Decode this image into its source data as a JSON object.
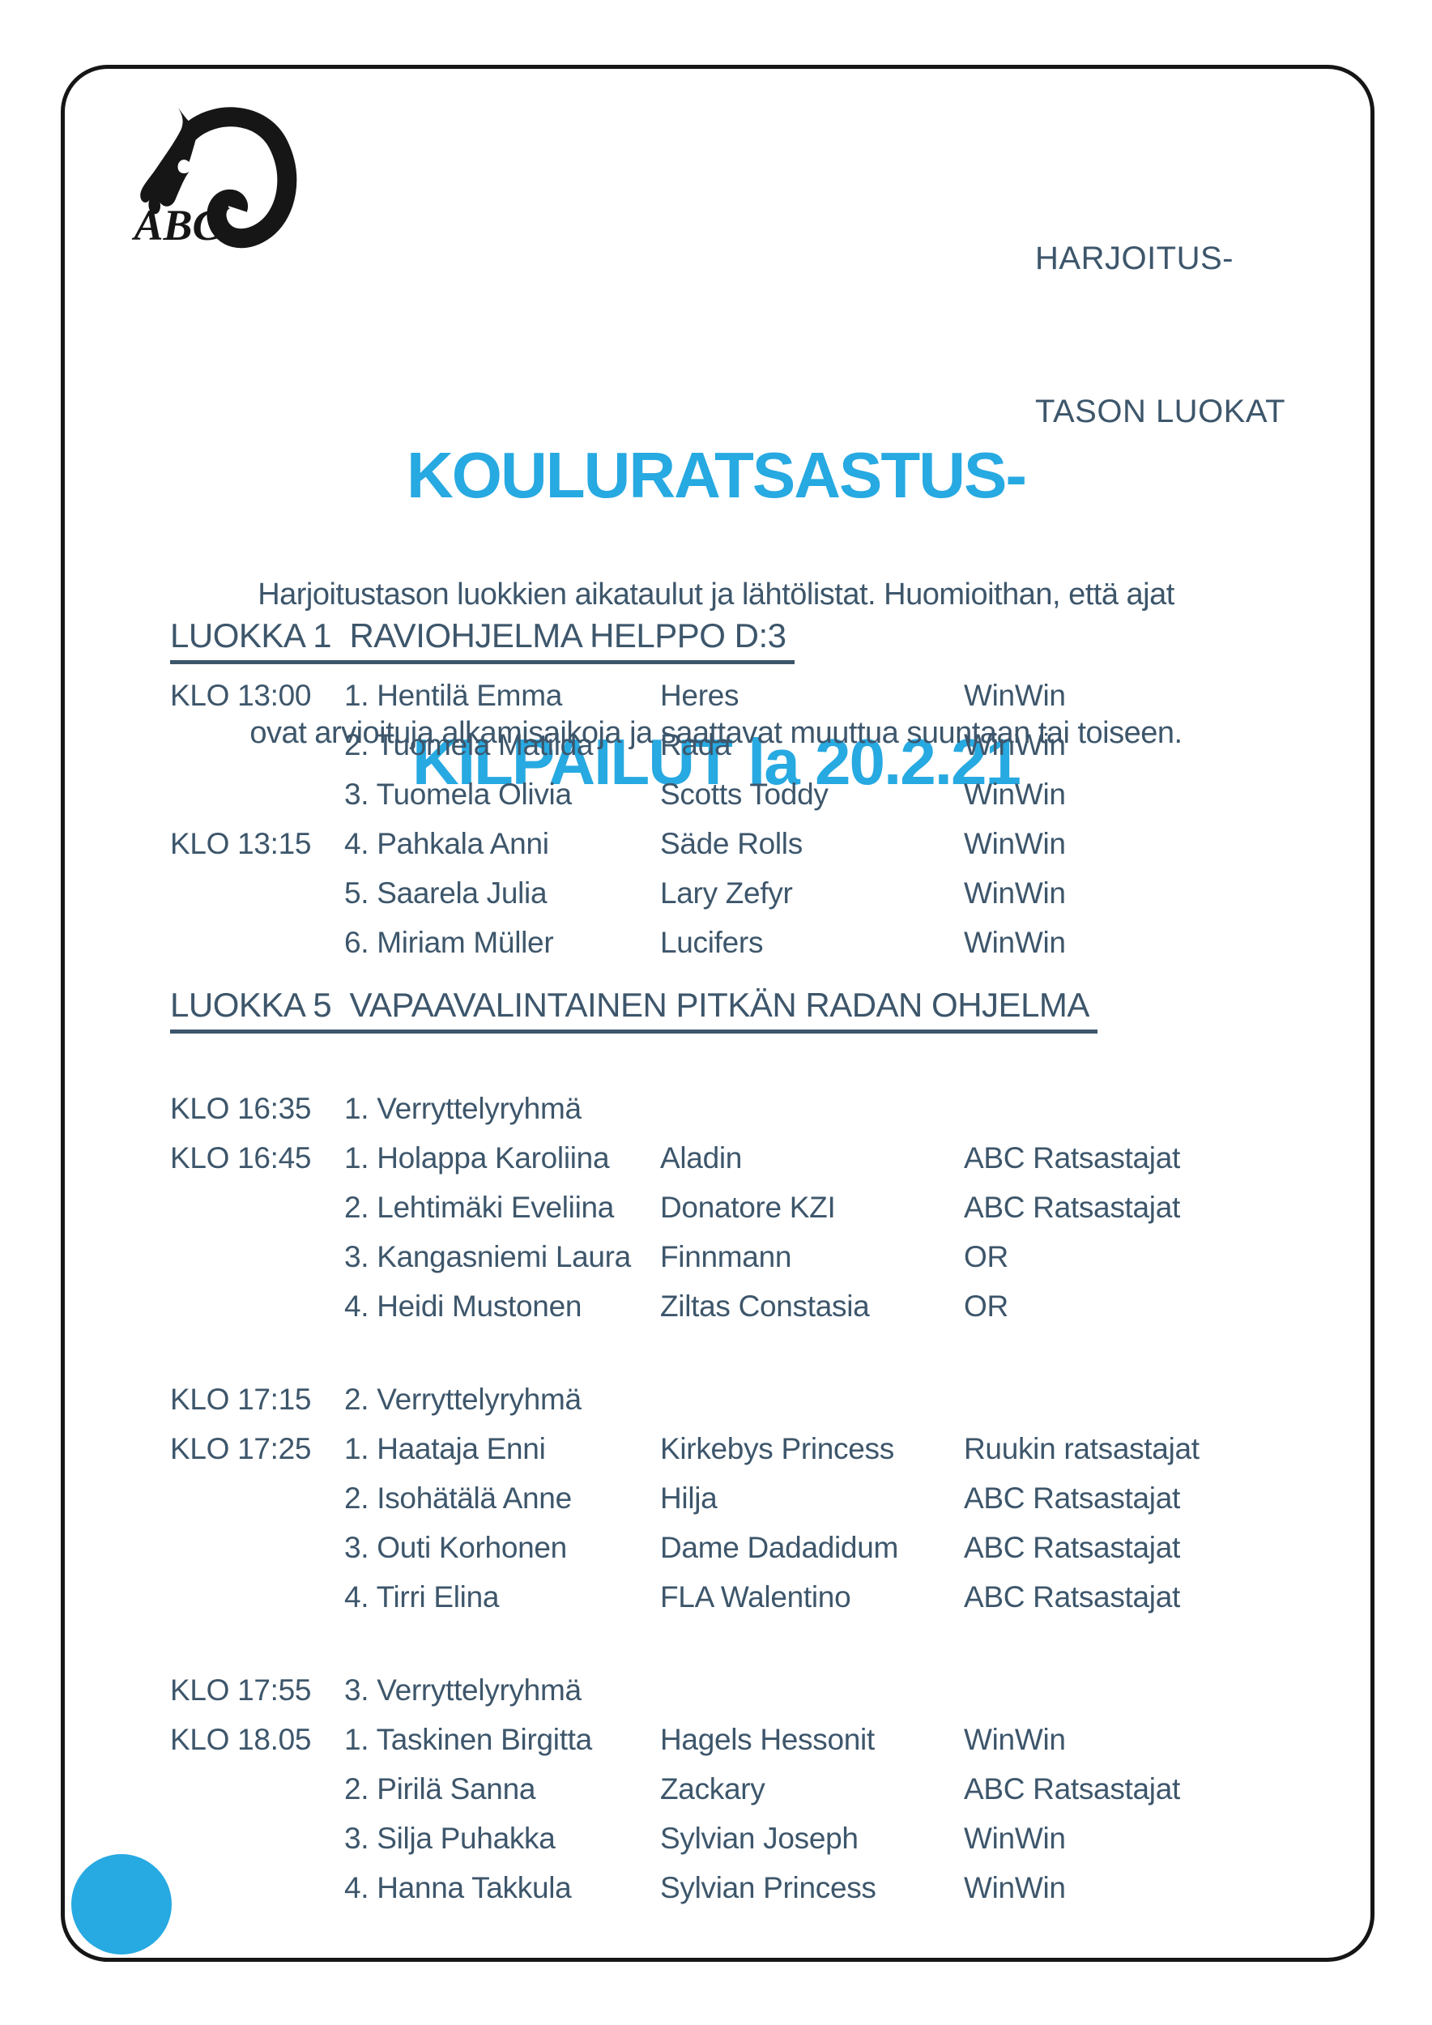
{
  "colors": {
    "accent": "#27a9e1",
    "text": "#3d566b",
    "frame": "#161616"
  },
  "logo": {
    "text": "ABC"
  },
  "corner_label": {
    "line1": "HARJOITUS-",
    "line2": "TASON LUOKAT"
  },
  "title": {
    "line1": "KOULURATSASTUS-",
    "line2": "KILPAILUT la 20.2.21"
  },
  "intro": {
    "line1": "Harjoitustason luokkien aikataulut ja lähtölistat. Huomioithan, että ajat",
    "line2": "ovat arvioituja alkamisaikoja ja saattavat muuttua suuntaan tai toiseen."
  },
  "sections": [
    {
      "heading": "LUOKKA 1  RAVIOHJELMA HELPPO D:3",
      "rows": [
        {
          "time": "KLO 13:00",
          "entry": "1. Hentilä Emma",
          "horse": "Heres",
          "club": "WinWin"
        },
        {
          "time": "",
          "entry": "2. Tuomela Matilda",
          "horse": "Rada",
          "club": "WinWin"
        },
        {
          "time": "",
          "entry": "3. Tuomela Olivia",
          "horse": "Scotts Toddy",
          "club": "WinWin"
        },
        {
          "time": "KLO 13:15",
          "entry": "4. Pahkala Anni",
          "horse": "Säde Rolls",
          "club": "WinWin"
        },
        {
          "time": "",
          "entry": "5. Saarela Julia",
          "horse": "Lary Zefyr",
          "club": "WinWin"
        },
        {
          "time": "",
          "entry": "6. Miriam Müller",
          "horse": "Lucifers",
          "club": "WinWin"
        }
      ]
    },
    {
      "heading": "LUOKKA 5  VAPAAVALINTAINEN PITKÄN RADAN OHJELMA",
      "rows": [
        {
          "time": "KLO 16:35",
          "entry": "1. Verryttelyryhmä",
          "horse": "",
          "club": "",
          "gap": true
        },
        {
          "time": "KLO 16:45",
          "entry": "1. Holappa Karoliina",
          "horse": "Aladin",
          "club": "ABC Ratsastajat"
        },
        {
          "time": "",
          "entry": "2. Lehtimäki Eveliina",
          "horse": "Donatore KZI",
          "club": "ABC Ratsastajat"
        },
        {
          "time": "",
          "entry": "3. Kangasniemi Laura",
          "horse": "Finnmann",
          "club": "OR"
        },
        {
          "time": "",
          "entry": "4. Heidi Mustonen",
          "horse": "Ziltas Constasia",
          "club": "OR"
        },
        {
          "time": "KLO 17:15",
          "entry": "2. Verryttelyryhmä",
          "horse": "",
          "club": "",
          "gap": true
        },
        {
          "time": "KLO 17:25",
          "entry": "1. Haataja Enni",
          "horse": "Kirkebys Princess",
          "club": "Ruukin ratsastajat"
        },
        {
          "time": "",
          "entry": "2. Isohätälä Anne",
          "horse": "Hilja",
          "club": "ABC Ratsastajat"
        },
        {
          "time": "",
          "entry": "3. Outi Korhonen",
          "horse": "Dame Dadadidum",
          "club": "ABC Ratsastajat"
        },
        {
          "time": "",
          "entry": "4. Tirri Elina",
          "horse": "FLA Walentino",
          "club": "ABC Ratsastajat"
        },
        {
          "time": "KLO 17:55",
          "entry": "3. Verryttelyryhmä",
          "horse": "",
          "club": "",
          "gap": true
        },
        {
          "time": "KLO 18.05",
          "entry": "1. Taskinen Birgitta",
          "horse": "Hagels Hessonit",
          "club": "WinWin"
        },
        {
          "time": "",
          "entry": "2. Pirilä Sanna",
          "horse": "Zackary",
          "club": "ABC Ratsastajat"
        },
        {
          "time": "",
          "entry": "3. Silja Puhakka",
          "horse": "Sylvian Joseph",
          "club": "WinWin"
        },
        {
          "time": "",
          "entry": "4. Hanna Takkula",
          "horse": "Sylvian Princess",
          "club": "WinWin"
        }
      ]
    }
  ]
}
